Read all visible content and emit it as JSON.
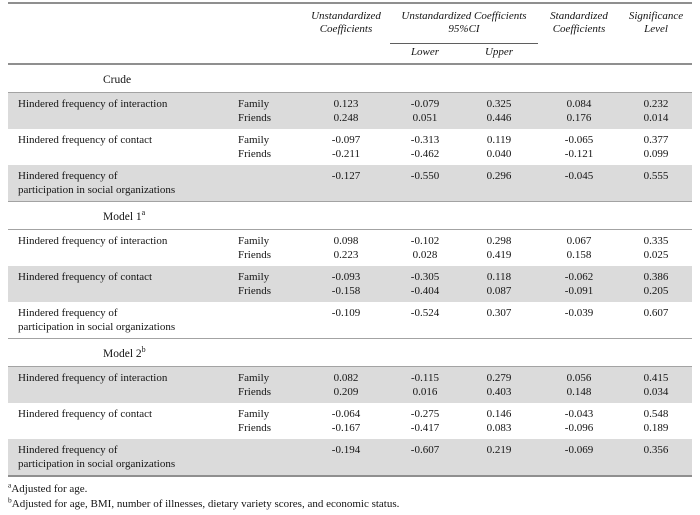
{
  "table": {
    "header": {
      "unstd_coef": "Unstandardized Coefficients",
      "unstd_ci": "Unstandardized Coefficients 95%CI",
      "ci_lower": "Lower",
      "ci_upper": "Upper",
      "std_coef": "Standardized Coefficients",
      "sig": "Significance Level"
    },
    "sections": [
      {
        "label": "Crude",
        "sup": "",
        "rows": [
          {
            "label": "Hindered frequency of interaction",
            "shaded": true,
            "entries": [
              {
                "group": "Family",
                "coef": "0.123",
                "lower": "-0.079",
                "upper": "0.325",
                "std": "0.084",
                "sig": "0.232"
              },
              {
                "group": "Friends",
                "coef": "0.248",
                "lower": "0.051",
                "upper": "0.446",
                "std": "0.176",
                "sig": "0.014"
              }
            ]
          },
          {
            "label": "Hindered frequency of contact",
            "shaded": false,
            "entries": [
              {
                "group": "Family",
                "coef": "-0.097",
                "lower": "-0.313",
                "upper": "0.119",
                "std": "-0.065",
                "sig": "0.377"
              },
              {
                "group": "Friends",
                "coef": "-0.211",
                "lower": "-0.462",
                "upper": "0.040",
                "std": "-0.121",
                "sig": "0.099"
              }
            ]
          },
          {
            "label": "Hindered frequency of\nparticipation in social organizations",
            "shaded": true,
            "entries": [
              {
                "group": "",
                "coef": "-0.127",
                "lower": "-0.550",
                "upper": "0.296",
                "std": "-0.045",
                "sig": "0.555"
              }
            ]
          }
        ]
      },
      {
        "label": "Model 1",
        "sup": "a",
        "rows": [
          {
            "label": "Hindered frequency of interaction",
            "shaded": false,
            "entries": [
              {
                "group": "Family",
                "coef": "0.098",
                "lower": "-0.102",
                "upper": "0.298",
                "std": "0.067",
                "sig": "0.335"
              },
              {
                "group": "Friends",
                "coef": "0.223",
                "lower": "0.028",
                "upper": "0.419",
                "std": "0.158",
                "sig": "0.025"
              }
            ]
          },
          {
            "label": "Hindered frequency of contact",
            "shaded": true,
            "entries": [
              {
                "group": "Family",
                "coef": "-0.093",
                "lower": "-0.305",
                "upper": "0.118",
                "std": "-0.062",
                "sig": "0.386"
              },
              {
                "group": "Friends",
                "coef": "-0.158",
                "lower": "-0.404",
                "upper": "0.087",
                "std": "-0.091",
                "sig": "0.205"
              }
            ]
          },
          {
            "label": "Hindered frequency of\nparticipation in social organizations",
            "shaded": false,
            "entries": [
              {
                "group": "",
                "coef": "-0.109",
                "lower": "-0.524",
                "upper": "0.307",
                "std": "-0.039",
                "sig": "0.607"
              }
            ]
          }
        ]
      },
      {
        "label": "Model 2",
        "sup": "b",
        "rows": [
          {
            "label": "Hindered frequency of interaction",
            "shaded": true,
            "entries": [
              {
                "group": "Family",
                "coef": "0.082",
                "lower": "-0.115",
                "upper": "0.279",
                "std": "0.056",
                "sig": "0.415"
              },
              {
                "group": "Friends",
                "coef": "0.209",
                "lower": "0.016",
                "upper": "0.403",
                "std": "0.148",
                "sig": "0.034"
              }
            ]
          },
          {
            "label": "Hindered frequency of contact",
            "shaded": false,
            "entries": [
              {
                "group": "Family",
                "coef": "-0.064",
                "lower": "-0.275",
                "upper": "0.146",
                "std": "-0.043",
                "sig": "0.548"
              },
              {
                "group": "Friends",
                "coef": "-0.167",
                "lower": "-0.417",
                "upper": "0.083",
                "std": "-0.096",
                "sig": "0.189"
              }
            ]
          },
          {
            "label": "Hindered frequency of\nparticipation in social organizations",
            "shaded": true,
            "entries": [
              {
                "group": "",
                "coef": "-0.194",
                "lower": "-0.607",
                "upper": "0.219",
                "std": "-0.069",
                "sig": "0.356"
              }
            ]
          }
        ]
      }
    ],
    "footnotes": [
      {
        "sup": "a",
        "text": "Adjusted for age."
      },
      {
        "sup": "b",
        "text": "Adjusted for age, BMI, number of illnesses, dietary variety scores, and economic status."
      }
    ],
    "colors": {
      "row_shading": "#dbdbdb",
      "rule_heavy": "#8f8f8f",
      "rule_light": "#a3a3a3"
    }
  }
}
